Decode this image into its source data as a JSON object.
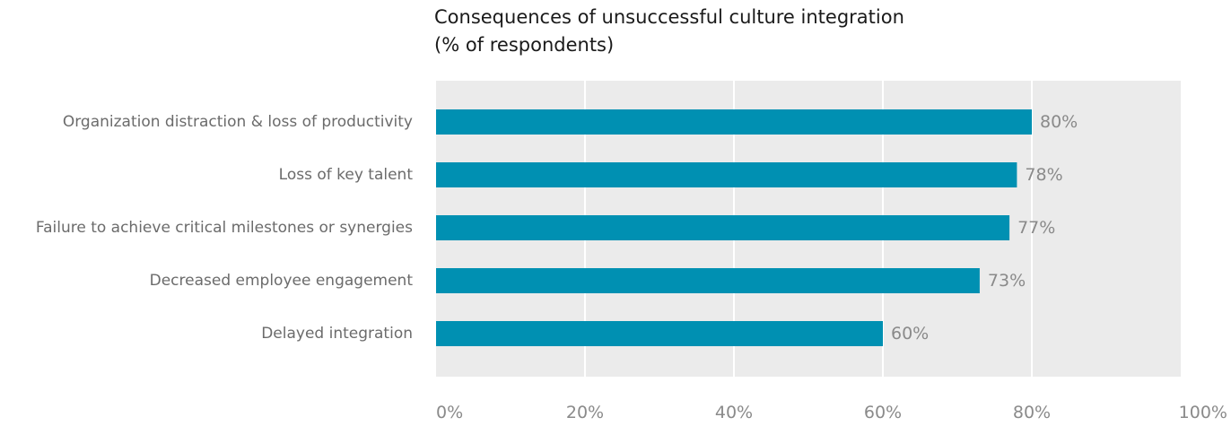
{
  "chart_data": {
    "type": "bar",
    "orientation": "horizontal",
    "title": "Consequences of unsuccessful culture integration",
    "subtitle": "(% of respondents)",
    "categories": [
      "Organization distraction & loss of productivity",
      "Loss of key talent",
      "Failure to achieve critical milestones or synergies",
      "Decreased employee engagement",
      "Delayed integration"
    ],
    "values": [
      80,
      78,
      77,
      73,
      60
    ],
    "value_labels": [
      "80%",
      "78%",
      "77%",
      "73%",
      "60%"
    ],
    "xlim": [
      0,
      100
    ],
    "x_ticks": [
      0,
      20,
      40,
      60,
      80,
      100
    ],
    "x_tick_labels": [
      "0%",
      "20%",
      "40%",
      "60%",
      "80%",
      "100%"
    ],
    "grid": true,
    "bar_color": "#0090b2",
    "plot_background": "#ebebeb",
    "grid_color": "#ffffff",
    "label_color": "#6b6b6b",
    "value_label_color": "#8a8a8a"
  }
}
